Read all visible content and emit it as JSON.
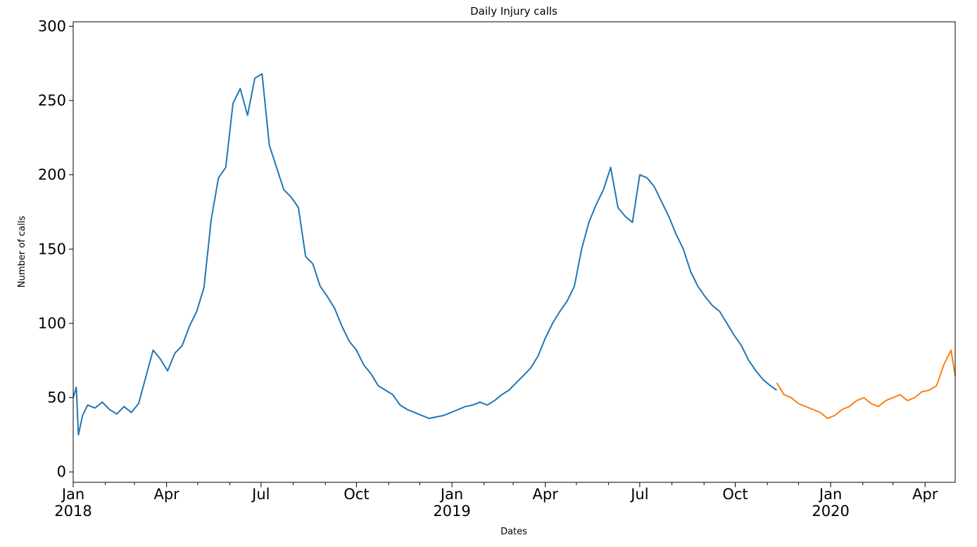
{
  "chart_data": {
    "type": "line",
    "title": "Daily Injury calls",
    "xlabel": "Dates",
    "ylabel": "Number of calls",
    "ylim": [
      -7,
      303
    ],
    "xlim": [
      "2018-01-01",
      "2020-04-30"
    ],
    "grid": false,
    "yticks": [
      0,
      50,
      100,
      150,
      200,
      250,
      300
    ],
    "xticks": [
      {
        "date": "2018-01-01",
        "label": "Jan",
        "sublabel": "2018"
      },
      {
        "date": "2018-04-01",
        "label": "Apr",
        "sublabel": ""
      },
      {
        "date": "2018-07-01",
        "label": "Jul",
        "sublabel": ""
      },
      {
        "date": "2018-10-01",
        "label": "Oct",
        "sublabel": ""
      },
      {
        "date": "2019-01-01",
        "label": "Jan",
        "sublabel": "2019"
      },
      {
        "date": "2019-04-01",
        "label": "Apr",
        "sublabel": ""
      },
      {
        "date": "2019-07-01",
        "label": "Jul",
        "sublabel": ""
      },
      {
        "date": "2019-10-01",
        "label": "Oct",
        "sublabel": ""
      },
      {
        "date": "2020-01-01",
        "label": "Jan",
        "sublabel": "2020"
      },
      {
        "date": "2020-04-01",
        "label": "Apr",
        "sublabel": ""
      }
    ],
    "series": [
      {
        "color": "#1f77b4",
        "x": [
          "2018-01-01",
          "2018-01-04",
          "2018-01-06",
          "2018-01-10",
          "2018-01-15",
          "2018-01-22",
          "2018-01-29",
          "2018-02-05",
          "2018-02-12",
          "2018-02-19",
          "2018-02-26",
          "2018-03-05",
          "2018-03-12",
          "2018-03-19",
          "2018-03-26",
          "2018-04-02",
          "2018-04-09",
          "2018-04-16",
          "2018-04-23",
          "2018-04-30",
          "2018-05-07",
          "2018-05-14",
          "2018-05-21",
          "2018-05-28",
          "2018-06-04",
          "2018-06-11",
          "2018-06-18",
          "2018-06-25",
          "2018-07-02",
          "2018-07-09",
          "2018-07-16",
          "2018-07-23",
          "2018-07-30",
          "2018-08-06",
          "2018-08-13",
          "2018-08-20",
          "2018-08-27",
          "2018-09-03",
          "2018-09-10",
          "2018-09-17",
          "2018-09-24",
          "2018-10-01",
          "2018-10-08",
          "2018-10-15",
          "2018-10-22",
          "2018-10-29",
          "2018-11-05",
          "2018-11-12",
          "2018-11-19",
          "2018-11-26",
          "2018-12-03",
          "2018-12-10",
          "2018-12-17",
          "2018-12-24",
          "2018-12-31",
          "2019-01-07",
          "2019-01-14",
          "2019-01-21",
          "2019-01-28",
          "2019-02-04",
          "2019-02-11",
          "2019-02-18",
          "2019-02-25",
          "2019-03-04",
          "2019-03-11",
          "2019-03-18",
          "2019-03-25",
          "2019-04-01",
          "2019-04-08",
          "2019-04-15",
          "2019-04-22",
          "2019-04-29",
          "2019-05-06",
          "2019-05-13",
          "2019-05-20",
          "2019-05-27",
          "2019-06-03",
          "2019-06-10",
          "2019-06-17",
          "2019-06-24",
          "2019-07-01",
          "2019-07-08",
          "2019-07-15",
          "2019-07-22",
          "2019-07-29",
          "2019-08-05",
          "2019-08-12",
          "2019-08-19",
          "2019-08-26",
          "2019-09-02",
          "2019-09-09",
          "2019-09-16",
          "2019-09-23",
          "2019-09-30",
          "2019-10-07",
          "2019-10-14",
          "2019-10-21",
          "2019-10-28",
          "2019-11-04",
          "2019-11-10"
        ],
        "values": [
          50,
          57,
          25,
          38,
          45,
          43,
          47,
          42,
          39,
          44,
          40,
          46,
          64,
          82,
          76,
          68,
          80,
          85,
          98,
          108,
          124,
          170,
          198,
          205,
          248,
          258,
          240,
          265,
          268,
          220,
          205,
          190,
          185,
          178,
          145,
          140,
          125,
          118,
          110,
          98,
          88,
          82,
          72,
          66,
          58,
          55,
          52,
          45,
          42,
          40,
          38,
          36,
          37,
          38,
          40,
          42,
          44,
          45,
          47,
          45,
          48,
          52,
          55,
          60,
          65,
          70,
          78,
          90,
          100,
          108,
          115,
          125,
          150,
          168,
          180,
          190,
          205,
          178,
          172,
          168,
          200,
          198,
          192,
          182,
          172,
          160,
          150,
          135,
          125,
          118,
          112,
          108,
          100,
          92,
          85,
          75,
          68,
          62,
          58,
          55
        ]
      },
      {
        "color": "#ff7f0e",
        "x": [
          "2019-11-10",
          "2019-11-17",
          "2019-11-24",
          "2019-12-01",
          "2019-12-08",
          "2019-12-15",
          "2019-12-22",
          "2019-12-29",
          "2020-01-05",
          "2020-01-12",
          "2020-01-19",
          "2020-01-26",
          "2020-02-02",
          "2020-02-09",
          "2020-02-16",
          "2020-02-23",
          "2020-03-01",
          "2020-03-08",
          "2020-03-15",
          "2020-03-22",
          "2020-03-29",
          "2020-04-05",
          "2020-04-12",
          "2020-04-19",
          "2020-04-26",
          "2020-04-30"
        ],
        "values": [
          60,
          52,
          50,
          46,
          44,
          42,
          40,
          36,
          38,
          42,
          44,
          48,
          50,
          46,
          44,
          48,
          50,
          52,
          48,
          50,
          54,
          55,
          58,
          72,
          82,
          65
        ]
      }
    ]
  }
}
